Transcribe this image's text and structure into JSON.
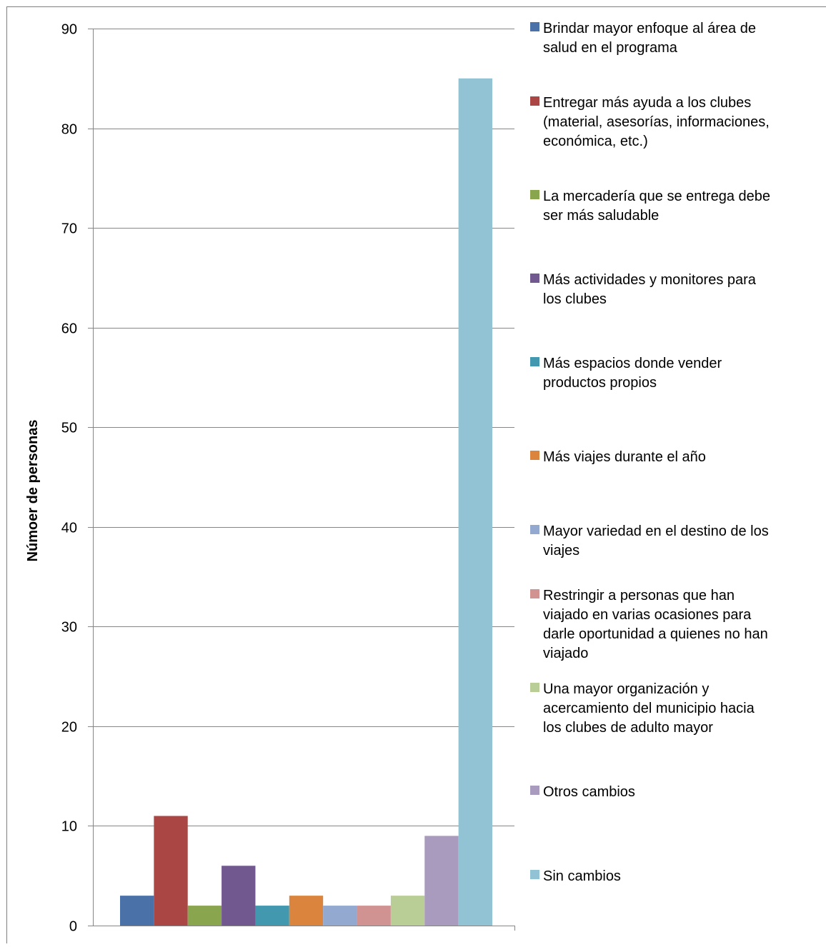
{
  "chart_data": {
    "type": "bar",
    "title": "",
    "xlabel": "",
    "ylabel": "Númoer de personas",
    "ylim": [
      0,
      90
    ],
    "yticks": [
      0,
      10,
      20,
      30,
      40,
      50,
      60,
      70,
      80,
      90
    ],
    "grid": true,
    "legend_position": "right",
    "series": [
      {
        "name": "Brindar mayor enfoque al área de salud en el programa",
        "value": 3,
        "color": "#4a72a8",
        "legend_lines": [
          "Brindar mayor enfoque al área de",
          "salud en el programa"
        ]
      },
      {
        "name": "Entregar más ayuda a los clubes (material, asesorías, informaciones, económica, etc.)",
        "value": 11,
        "color": "#aa4744",
        "legend_lines": [
          "Entregar más ayuda a los clubes",
          "(material, asesorías, informaciones,",
          "económica, etc.)"
        ]
      },
      {
        "name": "La mercadería que se entrega debe ser más saludable",
        "value": 2,
        "color": "#89a54e",
        "legend_lines": [
          "La mercadería que se entrega debe",
          "ser más saludable"
        ]
      },
      {
        "name": "Más actividades y monitores para los clubes",
        "value": 6,
        "color": "#71588f",
        "legend_lines": [
          "Más actividades y monitores para",
          "los clubes"
        ]
      },
      {
        "name": "Más espacios donde vender productos propios",
        "value": 2,
        "color": "#4198af",
        "legend_lines": [
          "Más espacios donde vender",
          "productos propios"
        ]
      },
      {
        "name": "Más viajes durante el año",
        "value": 3,
        "color": "#db843d",
        "legend_lines": [
          "Más viajes durante el año"
        ]
      },
      {
        "name": "Mayor variedad en el destino de los viajes",
        "value": 2,
        "color": "#93a9cf",
        "legend_lines": [
          "Mayor variedad en el destino de los",
          "viajes"
        ]
      },
      {
        "name": "Restringir a personas que han viajado en varias ocasiones para darle oportunidad a quienes no han viajado",
        "value": 2,
        "color": "#d19392",
        "legend_lines": [
          "Restringir a personas que han",
          "viajado en varias ocasiones para",
          "darle oportunidad a quienes no han",
          "viajado"
        ]
      },
      {
        "name": "Una mayor organización y acercamiento del municipio hacia los clubes de adulto mayor",
        "value": 3,
        "color": "#b9cd96",
        "legend_lines": [
          "Una mayor organización y",
          "acercamiento del municipio hacia",
          "los clubes de adulto mayor"
        ]
      },
      {
        "name": "Otros cambios",
        "value": 9,
        "color": "#a99bbd",
        "legend_lines": [
          "Otros cambios"
        ]
      },
      {
        "name": "Sin cambios",
        "value": 85,
        "color": "#92c3d4",
        "legend_lines": [
          "Sin cambios"
        ]
      }
    ]
  }
}
